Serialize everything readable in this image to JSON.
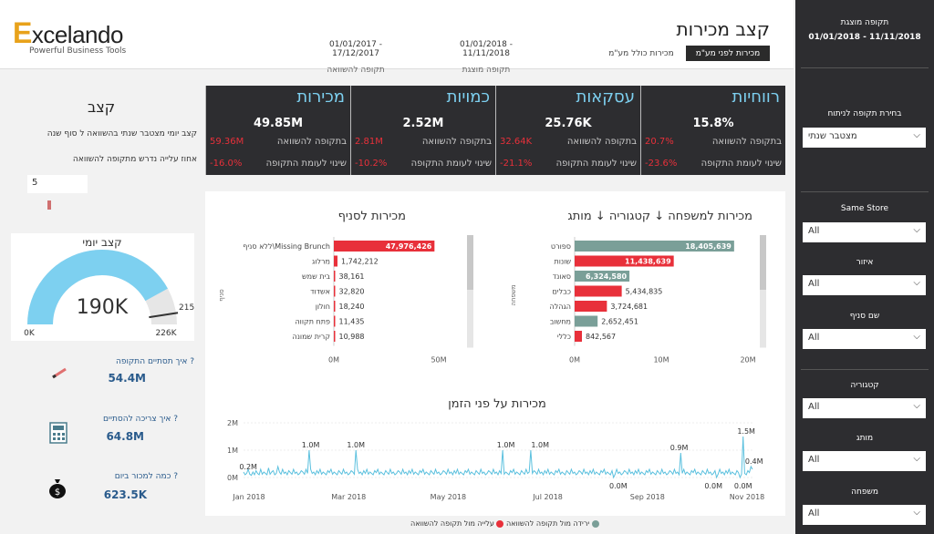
{
  "header": {
    "logo_e": "E",
    "logo_rest": "xcelando",
    "logo_tagline": "Powerful Business Tools",
    "title": "קצב מכירות",
    "btn_before": "מכירות לפני מע\"מ",
    "btn_incl": "מכירות כולל מע\"מ",
    "shown_period": {
      "dates": "01/01/2018 - 11/11/2018",
      "label": "תקופה מוצגת"
    },
    "compare_period": {
      "dates": "01/01/2017 - 17/12/2017",
      "label": "תקופה להשוואה"
    }
  },
  "sidebar": {
    "shown_label": "תקופה מוצגת",
    "shown_dates": "01/01/2018 - 11/11/2018",
    "analysis_label": "בחירת תקופה לניתוח",
    "analysis_value": "מצטבר שנתי",
    "filters": [
      {
        "label": "Same Store",
        "value": "All"
      },
      {
        "label": "איזור",
        "value": "All"
      },
      {
        "label": "שם סניף",
        "value": "All"
      },
      {
        "label": "קטגוריה",
        "value": "All"
      },
      {
        "label": "מותג",
        "value": "All"
      },
      {
        "label": "משפחה",
        "value": "All"
      }
    ]
  },
  "kpis": [
    {
      "title": "מכירות",
      "value": "49.85M",
      "compare_label": "בתקופה להשוואה",
      "compare_value": "59.36M",
      "change_label": "שינוי לעומת התקופה",
      "change_value": "-16.0%"
    },
    {
      "title": "כמויות",
      "value": "2.52M",
      "compare_label": "בתקופה להשוואה",
      "compare_value": "2.81M",
      "change_label": "שינוי לעומת התקופה",
      "change_value": "-10.2%"
    },
    {
      "title": "עסקאות",
      "value": "25.76K",
      "compare_label": "בתקופה להשוואה",
      "compare_value": "32.64K",
      "change_label": "שינוי לעומת התקופה",
      "change_value": "-21.1%"
    },
    {
      "title": "רווחיות",
      "value": "15.8%",
      "compare_label": "בתקופה להשוואה",
      "compare_value": "20.7%",
      "change_label": "שינוי לעומת התקופה",
      "change_value": "-23.6%"
    }
  ],
  "left": {
    "title": "קצב",
    "desc": "קצב יומי מצטבר שנתי בהשוואה ל סוף שנה",
    "pct_label": "אחוז עלייה נדרש מתקופה להשוואה",
    "pct_value": "5",
    "gauge": {
      "title": "קצב יומי",
      "value": "190K",
      "min": "0K",
      "max": "226K",
      "target": "215K",
      "value_num": 190,
      "min_num": 0,
      "max_num": 226,
      "target_num": 215
    },
    "questions": [
      {
        "label": "איך תסתיים התקופה ?",
        "value": "54.4M",
        "icon": "pencil-icon"
      },
      {
        "label": "איך צריכה להסתיים ?",
        "value": "64.8M",
        "icon": "calculator-icon"
      },
      {
        "label": "כמה למכור ביום ?",
        "value": "623.5K",
        "icon": "money-bag-icon"
      }
    ]
  },
  "colors": {
    "up": "#7a9f98",
    "down": "#e8303a",
    "accent": "#7dd0f0",
    "line": "#5bc0de"
  },
  "legend": {
    "down": "ירידה מול תקופה להשוואה",
    "up": "עלייה מול תקופה להשוואה"
  },
  "chart_data": [
    {
      "type": "bar",
      "title": "מכירות למשפחה ↓ קטגוריה ↓ מותג",
      "ylabel": "משפחה",
      "categories": [
        "ספורט",
        "שונות",
        "סאונד",
        "כבלים",
        "הגהלה",
        "מחשוב",
        "כללי"
      ],
      "values": [
        18405639,
        11438639,
        6324580,
        5434835,
        3724681,
        2652451,
        842567
      ],
      "value_labels": [
        "18,405,639",
        "11,438,639",
        "6,324,580",
        "5,434,835",
        "3,724,681",
        "2,652,451",
        "842,567"
      ],
      "direction": [
        "up",
        "down",
        "up",
        "down",
        "down",
        "up",
        "down"
      ],
      "xticks": [
        "0M",
        "10M",
        "20M"
      ],
      "xlim": [
        0,
        20000000
      ]
    },
    {
      "type": "bar",
      "title": "מכירות לסניף",
      "ylabel": "סניף",
      "categories": [
        "ללא סניף\\Missing Brunch",
        "מרלוג",
        "בית שמש",
        "אשדוד",
        "חולון",
        "פתח תקווה",
        "קרית שמונה"
      ],
      "values": [
        47976426,
        1742212,
        38161,
        32820,
        18240,
        11435,
        10988
      ],
      "value_labels": [
        "47,976,426",
        "1,742,212",
        "38,161",
        "32,820",
        "18,240",
        "11,435",
        "10,988"
      ],
      "direction": [
        "down",
        "down",
        "down",
        "down",
        "down",
        "down",
        "down"
      ],
      "xticks": [
        "0M",
        "50M"
      ],
      "xlim": [
        0,
        50000000
      ]
    },
    {
      "type": "line",
      "title": "מכירות על פני הזמן",
      "yticks": [
        "0M",
        "1M",
        "2M"
      ],
      "ylim": [
        0,
        2
      ],
      "xticks": [
        "Jan 2018",
        "Mar 2018",
        "May 2018",
        "Jul 2018",
        "Sep 2018",
        "Nov 2018"
      ],
      "annotations": [
        "0.2M",
        "1.0M",
        "1.0M",
        "1.0M",
        "1.0M",
        "0.9M",
        "0.0M",
        "0.0M",
        "0.0M",
        "1.5M",
        "0.4M"
      ],
      "annotation_x": [
        3,
        43,
        72,
        168,
        190,
        279,
        240,
        301,
        320,
        322,
        327
      ],
      "annotation_y": [
        0.2,
        1.0,
        1.0,
        1.0,
        1.0,
        0.9,
        0.0,
        0.0,
        0.0,
        1.5,
        0.4
      ],
      "values": [
        0.2,
        0.1,
        0.15,
        0.3,
        0.12,
        0.08,
        0.2,
        0.1,
        0.25,
        0.15,
        0.1,
        0.3,
        0.12,
        0.2,
        0.15,
        0.1,
        0.35,
        0.12,
        0.2,
        0.25,
        0.1,
        0.15,
        0.4,
        0.2,
        0.12,
        0.3,
        0.15,
        0.2,
        0.1,
        0.25,
        0.18,
        0.12,
        0.3,
        0.15,
        0.2,
        0.1,
        0.15,
        0.25,
        0.2,
        0.12,
        0.3,
        0.15,
        1.0,
        0.3,
        0.15,
        0.2,
        0.1,
        0.25,
        0.15,
        0.3,
        0.12,
        0.2,
        0.15,
        0.1,
        0.25,
        0.18,
        0.3,
        0.12,
        0.2,
        0.15,
        0.1,
        0.25,
        0.18,
        0.12,
        0.3,
        0.15,
        0.2,
        0.1,
        0.15,
        0.25,
        0.2,
        0.12,
        1.0,
        0.3,
        0.15,
        0.2,
        0.1,
        0.25,
        0.15,
        0.3,
        0.12,
        0.2,
        0.15,
        0.1,
        0.25,
        0.18,
        0.3,
        0.12,
        0.2,
        0.15,
        0.1,
        0.25,
        0.18,
        0.12,
        0.3,
        0.15,
        0.2,
        0.1,
        0.15,
        0.25,
        0.2,
        0.12,
        0.3,
        0.15,
        0.2,
        0.1,
        0.25,
        0.15,
        0.3,
        0.12,
        0.2,
        0.15,
        0.1,
        0.25,
        0.18,
        0.3,
        0.12,
        0.2,
        0.15,
        0.1,
        0.25,
        0.18,
        0.12,
        0.3,
        0.15,
        0.2,
        0.1,
        0.15,
        0.25,
        0.2,
        0.12,
        0.3,
        0.15,
        0.2,
        0.1,
        0.25,
        0.15,
        0.3,
        0.12,
        0.2,
        0.15,
        0.1,
        0.25,
        0.18,
        0.3,
        0.12,
        0.2,
        0.15,
        0.1,
        0.25,
        0.18,
        0.12,
        0.3,
        0.15,
        0.2,
        0.1,
        0.15,
        0.25,
        0.2,
        0.12,
        0.3,
        0.15,
        0.2,
        0.1,
        0.25,
        0.15,
        1.0,
        0.12,
        0.2,
        0.15,
        0.1,
        0.25,
        0.18,
        0.3,
        0.12,
        0.2,
        0.15,
        0.1,
        0.25,
        0.18,
        0.12,
        0.3,
        0.15,
        0.2,
        1.0,
        0.15,
        0.25,
        0.2,
        0.12,
        0.3,
        0.15,
        0.2,
        0.1,
        0.25,
        0.15,
        0.3,
        0.12,
        0.2,
        0.15,
        0.1,
        0.25,
        0.18,
        0.3,
        0.12,
        0.2,
        0.15,
        0.1,
        0.25,
        0.18,
        0.12,
        0.3,
        0.15,
        0.2,
        0.1,
        0.15,
        0.25,
        0.2,
        0.12,
        0.3,
        0.15,
        0.2,
        0.1,
        0.25,
        0.15,
        0.3,
        0.12,
        0.2,
        0.15,
        0.1,
        0.25,
        0.18,
        0.3,
        0.12,
        0.2,
        0.15,
        0.1,
        0.25,
        0.0,
        0.12,
        0.3,
        0.15,
        0.2,
        0.1,
        0.15,
        0.25,
        0.2,
        0.12,
        0.3,
        0.15,
        0.2,
        0.1,
        0.25,
        0.15,
        0.3,
        0.12,
        0.2,
        0.15,
        0.1,
        0.25,
        0.18,
        0.3,
        0.12,
        0.2,
        0.15,
        0.1,
        0.25,
        0.18,
        0.12,
        0.3,
        0.15,
        0.2,
        0.1,
        0.15,
        0.25,
        0.2,
        0.12,
        0.3,
        0.15,
        0.2,
        0.1,
        0.9,
        0.15,
        0.3,
        0.12,
        0.2,
        0.15,
        0.1,
        0.25,
        0.18,
        0.3,
        0.12,
        0.2,
        0.15,
        0.1,
        0.25,
        0.18,
        0.12,
        0.3,
        0.15,
        0.2,
        0.1,
        0.15,
        0.25,
        0.0,
        0.12,
        0.3,
        0.15,
        0.2,
        0.1,
        0.25,
        0.15,
        0.3,
        0.12,
        0.2,
        0.15,
        0.1,
        0.25,
        0.18,
        0.0,
        0.12,
        1.5,
        0.15,
        0.1,
        0.25,
        0.18,
        0.4,
        0.3
      ]
    }
  ]
}
